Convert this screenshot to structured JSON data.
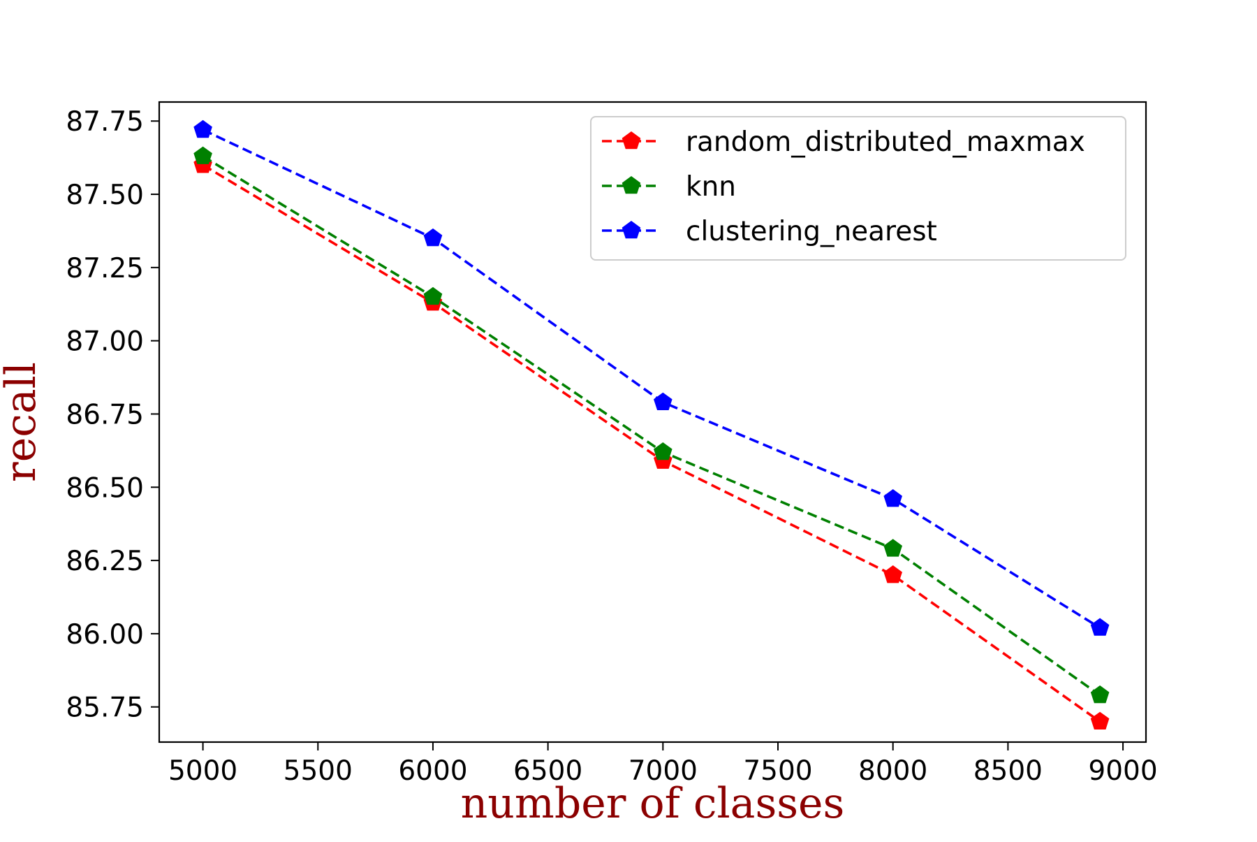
{
  "chart_data": {
    "type": "line",
    "title": "",
    "xlabel": "number of classes",
    "ylabel": "recall",
    "label_color": "#8b0000",
    "x": [
      5000,
      6000,
      7000,
      8000,
      8900
    ],
    "xlim": [
      4810,
      9100
    ],
    "ylim": [
      85.63,
      87.815
    ],
    "xticks": [
      5000,
      5500,
      6000,
      6500,
      7000,
      7500,
      8000,
      8500,
      9000
    ],
    "xtick_labels": [
      "5000",
      "5500",
      "6000",
      "6500",
      "7000",
      "7500",
      "8000",
      "8500",
      "9000"
    ],
    "yticks": [
      85.75,
      86.0,
      86.25,
      86.5,
      86.75,
      87.0,
      87.25,
      87.5,
      87.75
    ],
    "ytick_labels": [
      "85.75",
      "86.00",
      "86.25",
      "86.50",
      "86.75",
      "87.00",
      "87.25",
      "87.50",
      "87.75"
    ],
    "grid": false,
    "legend_position": "top-right",
    "line_style": "dashed",
    "marker": "pentagon",
    "series": [
      {
        "name": "random_distributed_maxmax",
        "color": "#ff0000",
        "values": [
          87.6,
          87.13,
          86.59,
          86.2,
          85.7
        ]
      },
      {
        "name": "knn",
        "color": "#008000",
        "values": [
          87.63,
          87.15,
          86.62,
          86.29,
          85.79
        ]
      },
      {
        "name": "clustering_nearest",
        "color": "#0000ff",
        "values": [
          87.72,
          87.35,
          86.79,
          86.46,
          86.02
        ]
      }
    ]
  }
}
